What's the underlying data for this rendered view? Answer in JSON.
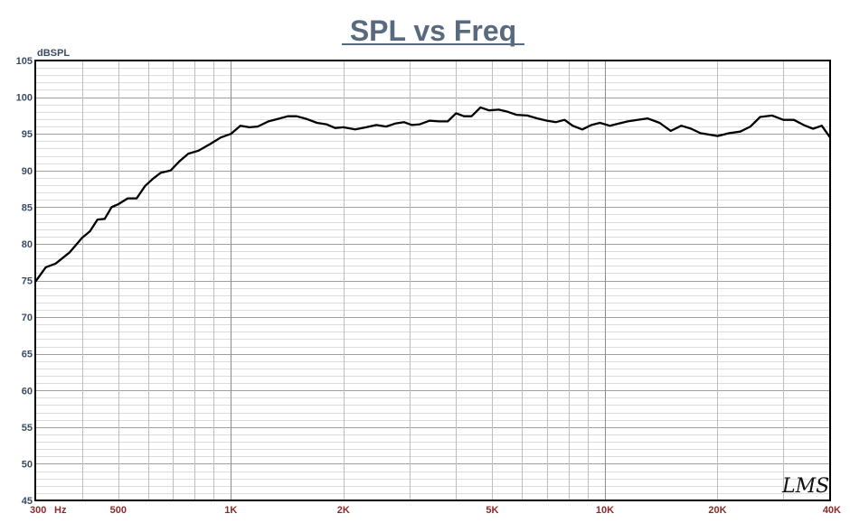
{
  "chart_data": {
    "type": "line",
    "title": "SPL vs Freq",
    "ylabel": "dBSPL",
    "xunit": "Hz",
    "xscale": "log",
    "xlim": [
      300,
      40000
    ],
    "ylim": [
      45,
      105
    ],
    "grid": true,
    "yticks": [
      {
        "value": 105,
        "label": "105"
      },
      {
        "value": 100,
        "label": "100"
      },
      {
        "value": 95,
        "label": "95"
      },
      {
        "value": 90,
        "label": "90"
      },
      {
        "value": 85,
        "label": "85"
      },
      {
        "value": 80,
        "label": "80"
      },
      {
        "value": 75,
        "label": "75"
      },
      {
        "value": 70,
        "label": "70"
      },
      {
        "value": 65,
        "label": "65"
      },
      {
        "value": 60,
        "label": "60"
      },
      {
        "value": 55,
        "label": "55"
      },
      {
        "value": 50,
        "label": "50"
      },
      {
        "value": 45,
        "label": "45"
      }
    ],
    "xticks": [
      {
        "value": 300,
        "label": "300"
      },
      {
        "value": 500,
        "label": "500"
      },
      {
        "value": 1000,
        "label": "1K"
      },
      {
        "value": 2000,
        "label": "2K"
      },
      {
        "value": 5000,
        "label": "5K"
      },
      {
        "value": 10000,
        "label": "10K"
      },
      {
        "value": 20000,
        "label": "20K"
      },
      {
        "value": 40000,
        "label": "40K"
      }
    ],
    "series": [
      {
        "color": "#000000",
        "x": [
          300,
          320,
          340,
          370,
          400,
          420,
          440,
          460,
          480,
          500,
          530,
          560,
          590,
          620,
          650,
          690,
          730,
          770,
          820,
          880,
          940,
          1000,
          1060,
          1120,
          1180,
          1260,
          1330,
          1420,
          1500,
          1600,
          1700,
          1800,
          1900,
          2000,
          2150,
          2300,
          2450,
          2600,
          2750,
          2900,
          3050,
          3200,
          3400,
          3600,
          3800,
          4000,
          4200,
          4400,
          4650,
          4900,
          5200,
          5500,
          5800,
          6200,
          6600,
          7000,
          7400,
          7800,
          8200,
          8700,
          9200,
          9700,
          10300,
          10900,
          11500,
          12200,
          13000,
          14000,
          15000,
          16000,
          17000,
          18000,
          19000,
          20000,
          21500,
          23000,
          24500,
          26000,
          28000,
          30000,
          32000,
          34000,
          36000,
          38000,
          40000
        ],
        "y": [
          74.8,
          76.8,
          77.3,
          78.8,
          80.8,
          81.7,
          83.3,
          83.4,
          85.0,
          85.4,
          86.2,
          86.2,
          87.9,
          88.9,
          89.7,
          90.0,
          91.3,
          92.3,
          92.7,
          93.6,
          94.5,
          95.0,
          96.1,
          95.9,
          96.0,
          96.7,
          97.0,
          97.4,
          97.4,
          97.0,
          96.5,
          96.3,
          95.8,
          95.9,
          95.6,
          95.9,
          96.2,
          96.0,
          96.4,
          96.6,
          96.2,
          96.3,
          96.8,
          96.7,
          96.7,
          97.8,
          97.4,
          97.4,
          98.6,
          98.2,
          98.3,
          98.0,
          97.6,
          97.5,
          97.1,
          96.8,
          96.6,
          96.9,
          96.1,
          95.6,
          96.2,
          96.5,
          96.1,
          96.4,
          96.7,
          96.9,
          97.1,
          96.5,
          95.4,
          96.1,
          95.7,
          95.1,
          94.9,
          94.7,
          95.1,
          95.3,
          96.0,
          97.3,
          97.5,
          96.9,
          96.9,
          96.2,
          95.7,
          96.1,
          94.5
        ]
      }
    ]
  },
  "logo_text": "LMS"
}
